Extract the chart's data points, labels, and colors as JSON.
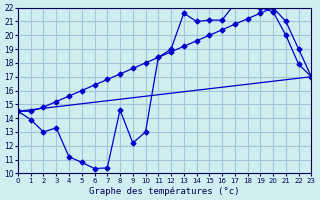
{
  "title": "Graphe des températures (°c)",
  "background_color": "#d0eef0",
  "grid_color": "#a0c8d8",
  "line_color": "#0000cc",
  "xlim": [
    0,
    23
  ],
  "ylim": [
    10,
    22
  ],
  "xticks": [
    0,
    1,
    2,
    3,
    4,
    5,
    6,
    7,
    8,
    9,
    10,
    11,
    12,
    13,
    14,
    15,
    16,
    17,
    18,
    19,
    20,
    21,
    22,
    23
  ],
  "yticks": [
    10,
    11,
    12,
    13,
    14,
    15,
    16,
    17,
    18,
    19,
    20,
    21,
    22
  ],
  "line1_x": [
    0,
    1,
    2,
    3,
    4,
    5,
    6,
    7,
    8,
    9,
    10,
    11,
    12,
    13,
    14,
    15,
    16,
    17,
    18,
    19,
    20,
    21,
    22,
    23
  ],
  "line1_y": [
    14.5,
    13.9,
    13.0,
    13.3,
    11.2,
    10.8,
    10.35,
    10.4,
    14.6,
    12.2,
    13.0,
    18.4,
    19.0,
    21.6,
    21.0,
    21.1,
    21.1,
    22.3,
    22.5,
    22.0,
    21.7,
    20.0,
    17.9,
    17.0
  ],
  "line2_x": [
    0,
    1,
    2,
    3,
    4,
    5,
    6,
    7,
    8,
    9,
    10,
    11,
    12,
    13,
    14,
    15,
    16,
    17,
    18,
    19,
    20,
    21,
    22,
    23
  ],
  "line2_y": [
    14.5,
    14.5,
    14.8,
    15.2,
    15.6,
    16.0,
    16.4,
    16.8,
    17.2,
    17.6,
    18.0,
    18.4,
    18.8,
    19.2,
    19.6,
    20.0,
    20.4,
    20.8,
    21.2,
    21.6,
    22.0,
    21.0,
    19.0,
    17.0
  ],
  "line3_x": [
    0,
    23
  ],
  "line3_y": [
    14.5,
    17.0
  ]
}
